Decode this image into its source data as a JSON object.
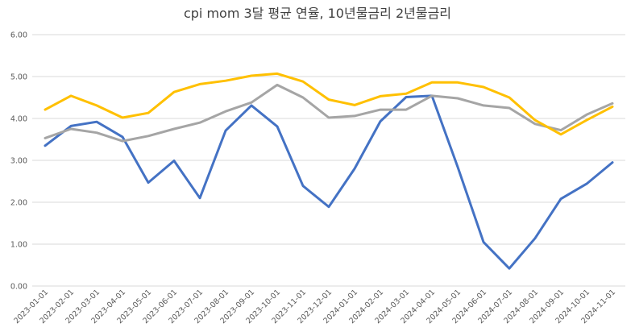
{
  "chart_data": {
    "type": "line",
    "title": "cpi mom 3달 평균 연율, 10년물금리 2년물금리",
    "xlabel": "",
    "ylabel": "",
    "ylim": [
      0,
      6
    ],
    "yticks": [
      "0.00",
      "1.00",
      "2.00",
      "3.00",
      "4.00",
      "5.00",
      "6.00"
    ],
    "grid": true,
    "legend": "none",
    "categories": [
      "2023-01-01",
      "2023-02-01",
      "2023-03-01",
      "2023-04-01",
      "2023-05-01",
      "2023-06-01",
      "2023-07-01",
      "2023-08-01",
      "2023-09-01",
      "2023-10-01",
      "2023-11-01",
      "2023-12-01",
      "2024-01-01",
      "2024-02-01",
      "2024-03-01",
      "2024-04-01",
      "2024-05-01",
      "2024-06-01",
      "2024-07-01",
      "2024-08-01",
      "2024-09-01",
      "2024-10-01",
      "2024-11-01"
    ],
    "series": [
      {
        "color": "#4472c4",
        "values": [
          3.35,
          3.82,
          3.92,
          3.56,
          2.47,
          2.99,
          2.1,
          3.71,
          4.31,
          3.81,
          2.39,
          1.89,
          2.8,
          3.93,
          4.51,
          4.54,
          2.84,
          1.05,
          0.42,
          1.14,
          2.08,
          2.44,
          2.95
        ]
      },
      {
        "color": "#a5a5a5",
        "values": [
          3.53,
          3.75,
          3.66,
          3.46,
          3.58,
          3.75,
          3.9,
          4.17,
          4.38,
          4.8,
          4.5,
          4.02,
          4.06,
          4.21,
          4.21,
          4.54,
          4.48,
          4.31,
          4.25,
          3.87,
          3.72,
          4.09,
          4.36
        ]
      },
      {
        "color": "#ffc000",
        "values": [
          4.21,
          4.54,
          4.31,
          4.02,
          4.13,
          4.63,
          4.82,
          4.9,
          5.02,
          5.07,
          4.88,
          4.45,
          4.32,
          4.53,
          4.59,
          4.86,
          4.86,
          4.75,
          4.5,
          3.96,
          3.62,
          3.96,
          4.28
        ]
      }
    ]
  }
}
